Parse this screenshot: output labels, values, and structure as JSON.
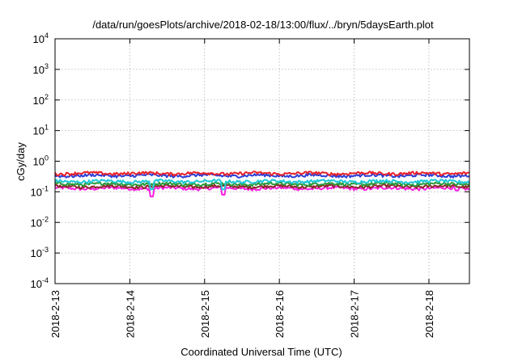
{
  "chart_data": {
    "type": "line",
    "title": "/data/run/goesPlots/archive/2018-02-18/13:00/flux/../bryn/5daysEarth.plot",
    "xlabel": "Coordinated Universal Time (UTC)",
    "ylabel": "cGy/day",
    "yscale": "log",
    "ylim": [
      0.0001,
      10000
    ],
    "xlim": [
      "2018-02-13 00:00",
      "2018-02-18 13:00"
    ],
    "grid": true,
    "yticks": [
      {
        "base": "10",
        "exp": "4"
      },
      {
        "base": "10",
        "exp": "3"
      },
      {
        "base": "10",
        "exp": "2"
      },
      {
        "base": "10",
        "exp": "1"
      },
      {
        "base": "10",
        "exp": "0"
      },
      {
        "base": "10",
        "exp": "-1"
      },
      {
        "base": "10",
        "exp": "-2"
      },
      {
        "base": "10",
        "exp": "-3"
      },
      {
        "base": "10",
        "exp": "-4"
      }
    ],
    "xticks": [
      "2018-2-13",
      "2018-2-14",
      "2018-2-15",
      "2018-2-16",
      "2018-2-17",
      "2018-2-18"
    ],
    "series": [
      {
        "color": "#e8202a",
        "level": 0.4
      },
      {
        "color": "#2c3fd6",
        "level": 0.34
      },
      {
        "color": "#1ec8d8",
        "level": 0.22
      },
      {
        "color": "#2a9a3a",
        "level": 0.18
      },
      {
        "color": "#8a2a2a",
        "level": 0.15
      },
      {
        "color": "#ff1ee0",
        "level": 0.13
      }
    ],
    "dips": [
      {
        "x": "2018-02-14 07:00",
        "series_min": {
          "#ff1ee0": 0.07,
          "#1ec8d8": 0.12
        }
      },
      {
        "x": "2018-02-15 06:00",
        "series_min": {
          "#ff1ee0": 0.08,
          "#1ec8d8": 0.12
        }
      },
      {
        "x": "2018-02-18 09:00",
        "series_min": {
          "#ff1ee0": 0.11
        }
      }
    ]
  }
}
